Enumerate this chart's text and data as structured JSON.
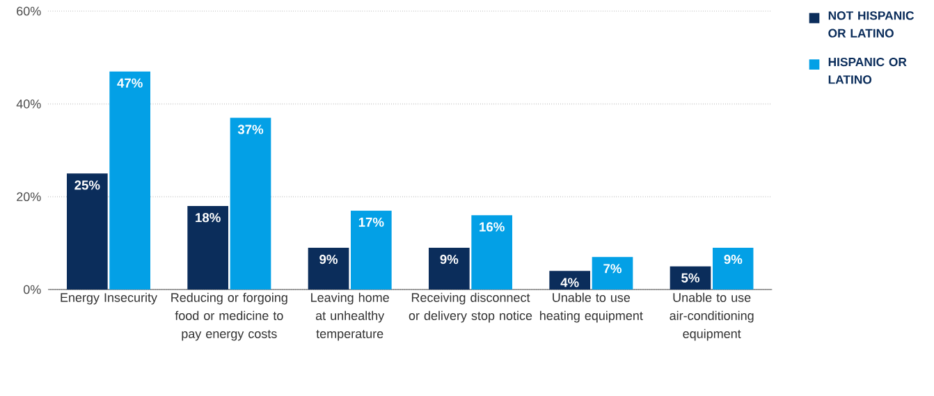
{
  "chart_data": {
    "type": "bar",
    "categories": [
      "Energy Insecurity",
      "Reducing or forgoing food or medicine to pay energy costs",
      "Leaving home at unhealthy temperature",
      "Receiving disconnect or delivery stop notice",
      "Unable to use heating equipment",
      "Unable to use air-conditioning equipment"
    ],
    "series": [
      {
        "name": "NOT HISPANIC OR LATINO",
        "color": "#0b2d5b",
        "values": [
          25,
          18,
          9,
          9,
          4,
          5
        ],
        "value_labels": [
          "25%",
          "18%",
          "9%",
          "9%",
          "4%",
          "5%"
        ]
      },
      {
        "name": "HISPANIC OR LATINO",
        "color": "#03a0e6",
        "values": [
          47,
          37,
          17,
          16,
          7,
          9
        ],
        "value_labels": [
          "47%",
          "37%",
          "17%",
          "16%",
          "7%",
          "9%"
        ]
      }
    ],
    "ylim": [
      0,
      60
    ],
    "yticks": [
      {
        "value": 0,
        "label": "0%"
      },
      {
        "value": 20,
        "label": "20%"
      },
      {
        "value": 40,
        "label": "40%"
      },
      {
        "value": 60,
        "label": "60%"
      }
    ],
    "grid": "y",
    "legend": "top right"
  }
}
